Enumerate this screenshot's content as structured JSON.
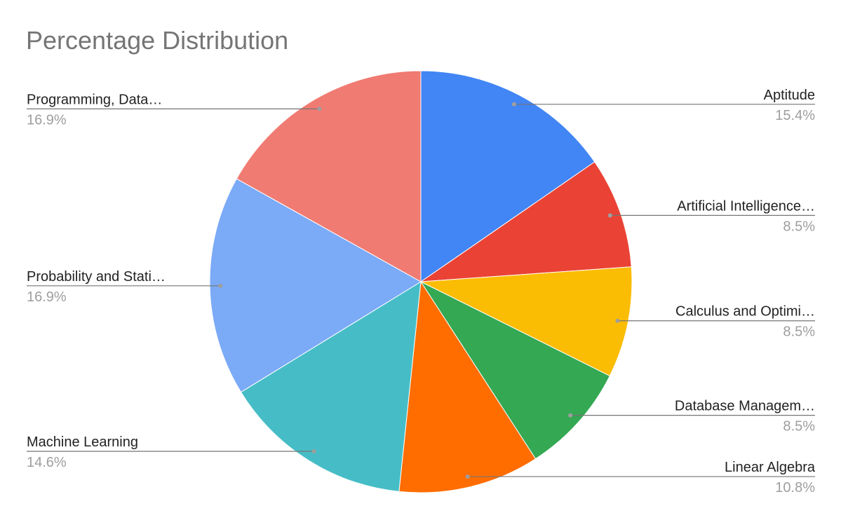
{
  "chart_data": {
    "type": "pie",
    "title": "Percentage Distribution",
    "categories": [
      "Aptitude",
      "Artificial Intelligence…",
      "Calculus and Optimi…",
      "Database Managem…",
      "Linear Algebra",
      "Machine Learning",
      "Probability and Stati…",
      "Programming, Data…"
    ],
    "values": [
      15.4,
      8.5,
      8.5,
      8.5,
      10.8,
      14.6,
      16.9,
      16.9
    ],
    "value_labels": [
      "15.4%",
      "8.5%",
      "8.5%",
      "8.5%",
      "10.8%",
      "14.6%",
      "16.9%",
      "16.9%"
    ],
    "colors": [
      "#4285f4",
      "#ea4335",
      "#fbbc04",
      "#34a853",
      "#ff6d01",
      "#46bdc6",
      "#7baaf7",
      "#f07b72"
    ]
  }
}
